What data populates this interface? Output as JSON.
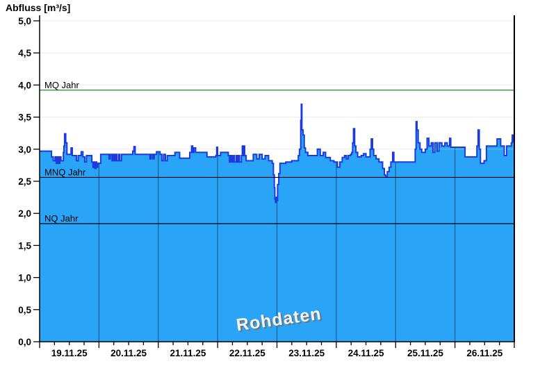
{
  "title": "Abfluss [m³/s]",
  "watermark": "Rohdaten",
  "chart_data": {
    "type": "area",
    "title": "Abfluss [m³/s]",
    "ylabel": "Abfluss [m³/s]",
    "x_axis": {
      "tick_labels": [
        "19.11.25",
        "20.11.25",
        "21.11.25",
        "22.11.25",
        "23.11.25",
        "24.11.25",
        "25.11.25",
        "26.11.25"
      ],
      "range_days": [
        0,
        8
      ],
      "minor_ticks_per_day": 4
    },
    "y_axis": {
      "min": 0,
      "max": 5,
      "step": 0.5,
      "tick_labels": [
        "0,0",
        "0,5",
        "1,0",
        "1,5",
        "2,0",
        "2,5",
        "3,0",
        "3,5",
        "4,0",
        "4,5",
        "5,0"
      ]
    },
    "grid": {
      "h_on": true,
      "h_color": "#ebebeb",
      "v_day_color": "rgba(0,0,0,0.42)"
    },
    "reference_lines": [
      {
        "name": "MQ Jahr",
        "value": 3.92,
        "color": "#007A00"
      },
      {
        "name": "MNQ Jahr",
        "value": 2.56,
        "color": "#000000"
      },
      {
        "name": "NQ Jahr",
        "value": 1.84,
        "color": "#000000"
      }
    ],
    "series": [
      {
        "name": "Rohdaten",
        "unit": "m³/s",
        "line_color": "#1B3BE0",
        "fill_color": "#2AA4F7",
        "step_points": [
          [
            0.0,
            2.97
          ],
          [
            0.2,
            2.88
          ],
          [
            0.23,
            2.82
          ],
          [
            0.26,
            2.88
          ],
          [
            0.28,
            2.78
          ],
          [
            0.3,
            2.88
          ],
          [
            0.32,
            2.78
          ],
          [
            0.34,
            2.88
          ],
          [
            0.36,
            2.82
          ],
          [
            0.4,
            2.95
          ],
          [
            0.41,
            3.05
          ],
          [
            0.42,
            3.24
          ],
          [
            0.44,
            3.1
          ],
          [
            0.46,
            2.92
          ],
          [
            0.53,
            3.02
          ],
          [
            0.55,
            2.9
          ],
          [
            0.62,
            2.82
          ],
          [
            0.65,
            2.9
          ],
          [
            0.7,
            2.96
          ],
          [
            0.73,
            2.88
          ],
          [
            0.76,
            2.8
          ],
          [
            0.79,
            2.9
          ],
          [
            0.88,
            2.8
          ],
          [
            0.9,
            2.72
          ],
          [
            0.92,
            2.8
          ],
          [
            0.93,
            2.7
          ],
          [
            0.95,
            2.8
          ],
          [
            0.96,
            2.72
          ],
          [
            0.98,
            2.78
          ],
          [
            1.03,
            2.92
          ],
          [
            1.17,
            2.85
          ],
          [
            1.19,
            2.92
          ],
          [
            1.22,
            2.82
          ],
          [
            1.24,
            2.92
          ],
          [
            1.26,
            2.82
          ],
          [
            1.28,
            2.92
          ],
          [
            1.3,
            2.82
          ],
          [
            1.33,
            2.92
          ],
          [
            1.35,
            2.82
          ],
          [
            1.38,
            2.92
          ],
          [
            1.57,
            2.97
          ],
          [
            1.59,
            3.04
          ],
          [
            1.61,
            2.92
          ],
          [
            1.86,
            2.85
          ],
          [
            1.88,
            2.92
          ],
          [
            1.91,
            2.85
          ],
          [
            1.93,
            2.92
          ],
          [
            1.97,
            2.96
          ],
          [
            2.03,
            2.92
          ],
          [
            2.06,
            2.82
          ],
          [
            2.09,
            2.92
          ],
          [
            2.12,
            2.82
          ],
          [
            2.15,
            2.9
          ],
          [
            2.28,
            2.95
          ],
          [
            2.36,
            2.86
          ],
          [
            2.53,
            2.95
          ],
          [
            2.56,
            3.05
          ],
          [
            2.58,
            2.95
          ],
          [
            2.6,
            3.02
          ],
          [
            2.63,
            2.95
          ],
          [
            2.82,
            2.88
          ],
          [
            2.9,
            2.88
          ],
          [
            2.97,
            2.9
          ],
          [
            2.985,
            3.03
          ],
          [
            3.0,
            2.9
          ],
          [
            3.05,
            2.95
          ],
          [
            3.18,
            2.9
          ],
          [
            3.2,
            2.8
          ],
          [
            3.22,
            2.9
          ],
          [
            3.24,
            2.8
          ],
          [
            3.26,
            2.9
          ],
          [
            3.28,
            2.8
          ],
          [
            3.31,
            2.9
          ],
          [
            3.33,
            2.8
          ],
          [
            3.35,
            2.9
          ],
          [
            3.37,
            2.8
          ],
          [
            3.4,
            2.9
          ],
          [
            3.415,
            3.05
          ],
          [
            3.43,
            2.9
          ],
          [
            3.44,
            3.05
          ],
          [
            3.455,
            2.9
          ],
          [
            3.48,
            2.82
          ],
          [
            3.6,
            2.92
          ],
          [
            3.66,
            2.85
          ],
          [
            3.7,
            2.92
          ],
          [
            3.75,
            2.85
          ],
          [
            3.8,
            2.9
          ],
          [
            3.86,
            2.82
          ],
          [
            3.92,
            2.78
          ],
          [
            3.94,
            2.6
          ],
          [
            3.955,
            2.4
          ],
          [
            3.965,
            2.22
          ],
          [
            3.975,
            2.17
          ],
          [
            3.99,
            2.25
          ],
          [
            4.0,
            2.2
          ],
          [
            4.01,
            2.45
          ],
          [
            4.03,
            2.62
          ],
          [
            4.05,
            2.78
          ],
          [
            4.15,
            2.8
          ],
          [
            4.25,
            2.82
          ],
          [
            4.36,
            2.9
          ],
          [
            4.38,
            3.0
          ],
          [
            4.4,
            3.45
          ],
          [
            4.41,
            3.7
          ],
          [
            4.42,
            3.3
          ],
          [
            4.44,
            3.22
          ],
          [
            4.46,
            3.02
          ],
          [
            4.48,
            2.95
          ],
          [
            4.52,
            2.9
          ],
          [
            4.68,
            3.0
          ],
          [
            4.73,
            2.9
          ],
          [
            4.78,
            2.95
          ],
          [
            4.82,
            2.87
          ],
          [
            4.9,
            2.82
          ],
          [
            4.96,
            2.8
          ],
          [
            5.02,
            2.72
          ],
          [
            5.06,
            2.8
          ],
          [
            5.1,
            2.87
          ],
          [
            5.14,
            2.9
          ],
          [
            5.17,
            2.85
          ],
          [
            5.2,
            2.9
          ],
          [
            5.24,
            2.92
          ],
          [
            5.26,
            2.95
          ],
          [
            5.275,
            3.1
          ],
          [
            5.29,
            3.32
          ],
          [
            5.31,
            3.05
          ],
          [
            5.33,
            2.95
          ],
          [
            5.36,
            2.88
          ],
          [
            5.42,
            2.9
          ],
          [
            5.46,
            2.93
          ],
          [
            5.5,
            2.88
          ],
          [
            5.57,
            3.0
          ],
          [
            5.59,
            3.16
          ],
          [
            5.61,
            3.0
          ],
          [
            5.63,
            2.9
          ],
          [
            5.67,
            2.85
          ],
          [
            5.72,
            2.8
          ],
          [
            5.78,
            2.7
          ],
          [
            5.81,
            2.6
          ],
          [
            5.83,
            2.58
          ],
          [
            5.86,
            2.65
          ],
          [
            5.89,
            2.72
          ],
          [
            5.92,
            2.8
          ],
          [
            5.95,
            2.95
          ],
          [
            5.97,
            2.8
          ],
          [
            6.0,
            2.8
          ],
          [
            6.33,
            3.0
          ],
          [
            6.345,
            3.43
          ],
          [
            6.36,
            3.3
          ],
          [
            6.38,
            3.1
          ],
          [
            6.41,
            3.0
          ],
          [
            6.44,
            2.95
          ],
          [
            6.5,
            3.0
          ],
          [
            6.53,
            3.17
          ],
          [
            6.56,
            3.05
          ],
          [
            6.6,
            3.1
          ],
          [
            6.63,
            2.95
          ],
          [
            6.66,
            3.1
          ],
          [
            6.7,
            2.97
          ],
          [
            6.73,
            3.1
          ],
          [
            6.78,
            3.05
          ],
          [
            6.83,
            3.1
          ],
          [
            6.87,
            3.05
          ],
          [
            6.91,
            3.17
          ],
          [
            6.93,
            3.03
          ],
          [
            7.0,
            3.03
          ],
          [
            7.17,
            2.88
          ],
          [
            7.37,
            3.05
          ],
          [
            7.39,
            3.3
          ],
          [
            7.41,
            3.0
          ],
          [
            7.43,
            2.78
          ],
          [
            7.49,
            2.82
          ],
          [
            7.53,
            3.05
          ],
          [
            7.71,
            3.16
          ],
          [
            7.77,
            3.05
          ],
          [
            7.83,
            2.9
          ],
          [
            7.87,
            3.05
          ],
          [
            7.95,
            3.1
          ],
          [
            7.965,
            3.22
          ],
          [
            7.99,
            3.12
          ],
          [
            8.0,
            3.12
          ]
        ]
      }
    ],
    "watermark": "Rohdaten"
  }
}
